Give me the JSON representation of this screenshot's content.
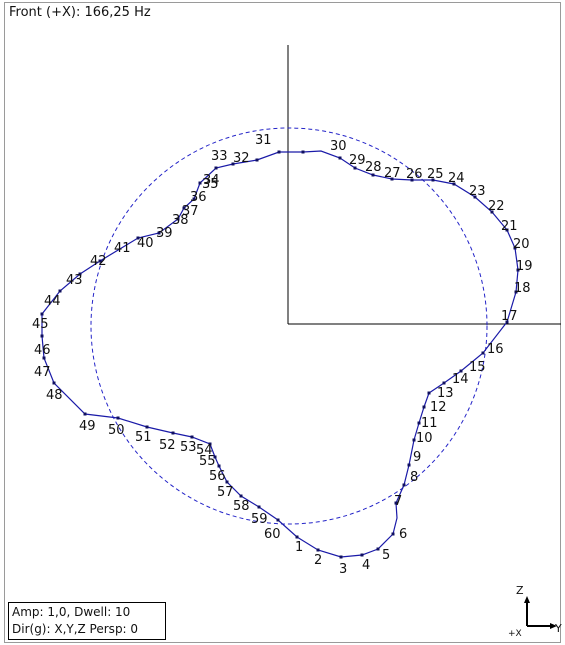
{
  "header": {
    "title": "Front (+X): 166,25 Hz"
  },
  "info": {
    "line1": "Amp: 1,0,  Dwell: 10",
    "line2": "Dir(g): X,Y,Z Persp: 0"
  },
  "axis_indicator": {
    "z_label": "Z",
    "x_label": "+X",
    "y_label": "Y"
  },
  "colors": {
    "line": "#1a1aa8",
    "dashed": "#2424c8",
    "axis": "#000000"
  },
  "mode_shape": {
    "node_labels": [
      "1",
      "2",
      "3",
      "4",
      "5",
      "6",
      "7",
      "8",
      "9",
      "10",
      "11",
      "12",
      "13",
      "14",
      "15",
      "16",
      "17",
      "18",
      "19",
      "20",
      "21",
      "22",
      "23",
      "24",
      "25",
      "26",
      "27",
      "28",
      "29",
      "30",
      "31",
      "32",
      "33",
      "34",
      "35",
      "36",
      "37",
      "38",
      "39",
      "40",
      "41",
      "42",
      "43",
      "44",
      "45",
      "46",
      "47",
      "48",
      "49",
      "50",
      "51",
      "52",
      "53",
      "54",
      "55",
      "56",
      "57",
      "58",
      "59",
      "60"
    ]
  }
}
